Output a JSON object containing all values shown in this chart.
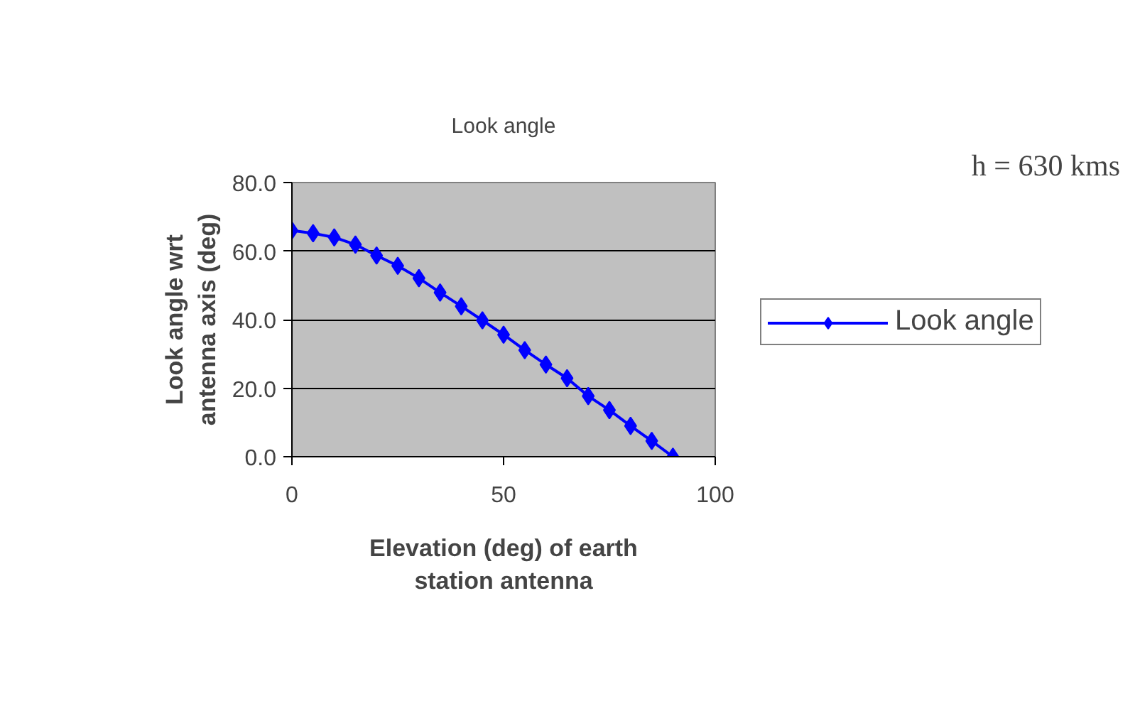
{
  "chart_data": {
    "type": "line",
    "title": "Look angle",
    "xlabel": "Elevation (deg) of earth station antenna",
    "ylabel": "Look angle wrt antenna axis (deg)",
    "annotations": [
      "h = 630 kms"
    ],
    "x": [
      0,
      5,
      10,
      15,
      20,
      25,
      30,
      35,
      40,
      45,
      50,
      55,
      60,
      65,
      70,
      75,
      80,
      85,
      90
    ],
    "series": [
      {
        "name": "Look angle",
        "color": "#0000ff",
        "values": [
          66.0,
          65.2,
          64.0,
          61.9,
          58.7,
          55.7,
          52.1,
          47.9,
          43.9,
          39.8,
          35.6,
          31.1,
          26.9,
          22.9,
          17.7,
          13.6,
          9.0,
          4.6,
          0.0
        ]
      }
    ],
    "xlim": [
      0,
      100
    ],
    "xticks": [
      0,
      50,
      100
    ],
    "ylim": [
      0,
      80
    ],
    "yticks": [
      {
        "value": 0,
        "label": "0.0"
      },
      {
        "value": 20,
        "label": "20.0"
      },
      {
        "value": 40,
        "label": "40.0"
      },
      {
        "value": 60,
        "label": "60.0"
      },
      {
        "value": 80,
        "label": "80.0"
      }
    ],
    "grid": "y",
    "legend": "right",
    "marker": "diamond",
    "line_style": "solid"
  }
}
